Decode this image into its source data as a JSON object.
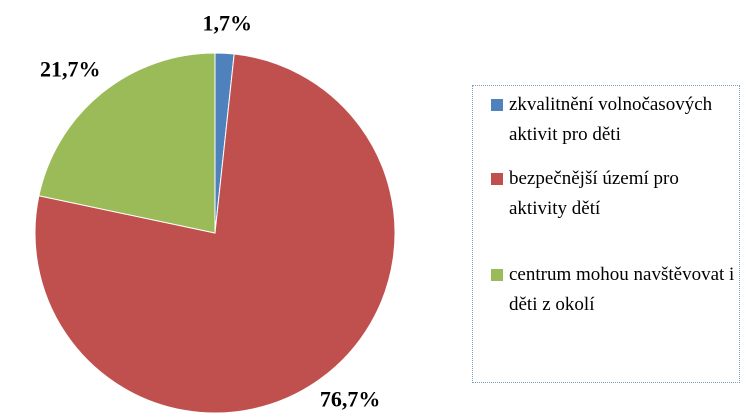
{
  "chart_data": {
    "type": "pie",
    "categories": [
      "zkvalitnění volnočasových aktivit pro děti",
      "bezpečnější území pro aktivity dětí",
      "centrum mohou navštěvovat i děti z okolí"
    ],
    "values": [
      1.7,
      76.7,
      21.7
    ],
    "value_labels": [
      "1,7%",
      "76,7%",
      "21,7%"
    ],
    "colors": [
      "#4f81bd",
      "#c0504d",
      "#9bbb59"
    ],
    "legend": "right"
  }
}
